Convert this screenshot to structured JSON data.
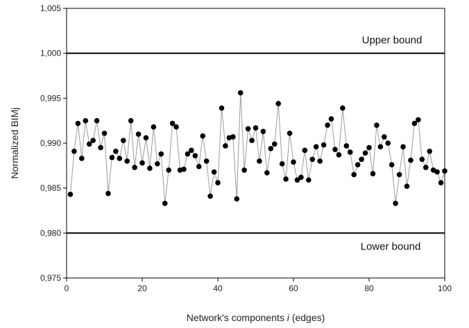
{
  "chart_data": {
    "type": "line",
    "xlabel_prefix": "Network's components ",
    "xlabel_var": "i",
    "xlabel_suffix": " (edges)",
    "ylabel": "Normalized BIMj",
    "xlim": [
      0,
      100
    ],
    "ylim": [
      0.975,
      1.005
    ],
    "x_ticks": [
      0,
      20,
      40,
      60,
      80,
      100
    ],
    "x_tick_labels": [
      "0",
      "20",
      "40",
      "60",
      "80",
      "100"
    ],
    "y_ticks": [
      0.975,
      0.98,
      0.985,
      0.99,
      0.995,
      1.0,
      1.005
    ],
    "y_tick_labels": [
      "0,975",
      "0,980",
      "0,985",
      "0,990",
      "0,995",
      "1,000",
      "1,005"
    ],
    "grid": false,
    "reference_lines": [
      {
        "label": "Upper bound",
        "value": 1.0
      },
      {
        "label": "Lower bound",
        "value": 0.98
      }
    ],
    "series": [
      {
        "x": [
          1,
          2,
          3,
          4,
          5,
          6,
          7,
          8,
          9,
          10,
          11,
          12,
          13,
          14,
          15,
          16,
          17,
          18,
          19,
          20,
          21,
          22,
          23,
          24,
          25,
          26,
          27,
          28,
          29,
          30,
          31,
          32,
          33,
          34,
          35,
          36,
          37,
          38,
          39,
          40,
          41,
          42,
          43,
          44,
          45,
          46,
          47,
          48,
          49,
          50,
          51,
          52,
          53,
          54,
          55,
          56,
          57,
          58,
          59,
          60,
          61,
          62,
          63,
          64,
          65,
          66,
          67,
          68,
          69,
          70,
          71,
          72,
          73,
          74,
          75,
          76,
          77,
          78,
          79,
          80,
          81,
          82,
          83,
          84,
          85,
          86,
          87,
          88,
          89,
          90,
          91,
          92,
          93,
          94,
          95,
          96,
          97,
          98,
          99,
          100
        ],
        "values": [
          0.9843,
          0.9891,
          0.9922,
          0.9883,
          0.9925,
          0.9899,
          0.9903,
          0.9925,
          0.9895,
          0.9911,
          0.9844,
          0.9884,
          0.9891,
          0.9883,
          0.9903,
          0.988,
          0.9925,
          0.9873,
          0.991,
          0.9878,
          0.9906,
          0.9872,
          0.9918,
          0.9877,
          0.9888,
          0.9833,
          0.987,
          0.9922,
          0.9918,
          0.987,
          0.9871,
          0.9888,
          0.9892,
          0.9886,
          0.9874,
          0.9908,
          0.988,
          0.9841,
          0.9868,
          0.9856,
          0.9939,
          0.9897,
          0.9906,
          0.9907,
          0.9838,
          0.9956,
          0.987,
          0.9916,
          0.9903,
          0.9917,
          0.988,
          0.9913,
          0.9867,
          0.9894,
          0.9899,
          0.9944,
          0.9877,
          0.986,
          0.9911,
          0.9879,
          0.9859,
          0.9862,
          0.9892,
          0.9859,
          0.9882,
          0.9896,
          0.988,
          0.9898,
          0.992,
          0.9927,
          0.9893,
          0.9887,
          0.9939,
          0.9897,
          0.989,
          0.9865,
          0.9876,
          0.9882,
          0.9889,
          0.9895,
          0.9866,
          0.992,
          0.9896,
          0.9907,
          0.99,
          0.9876,
          0.9833,
          0.9865,
          0.9896,
          0.9852,
          0.9881,
          0.9922,
          0.9926,
          0.9882,
          0.9873,
          0.9891,
          0.987,
          0.9868,
          0.9856,
          0.9869
        ]
      }
    ],
    "colors": {
      "line": "#9a9a9a",
      "marker": "#000000",
      "axis": "#000000",
      "bound": "#000000"
    }
  }
}
